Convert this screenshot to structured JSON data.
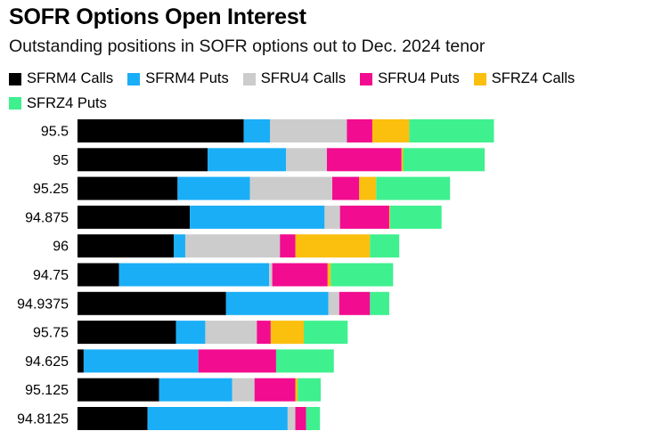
{
  "chart_data": {
    "type": "bar",
    "orientation": "horizontal",
    "stacked": true,
    "title": "SOFR Options Open Interest",
    "subtitle": "Outstanding positions in SOFR options out to Dec. 2024 tenor",
    "legend_position": "top",
    "categories": [
      "95.5",
      "95",
      "95.25",
      "94.875",
      "96",
      "94.75",
      "94.9375",
      "95.75",
      "94.625",
      "95.125",
      "94.8125"
    ],
    "series": [
      {
        "name": "SFRM4 Calls",
        "color": "#000000",
        "values": [
          216,
          169,
          130,
          146,
          125,
          54,
          193,
          128,
          8,
          106,
          91
        ]
      },
      {
        "name": "SFRM4 Puts",
        "color": "#1aaef7",
        "values": [
          34,
          102,
          94,
          175,
          15,
          195,
          133,
          38,
          149,
          95,
          182
        ]
      },
      {
        "name": "SFRU4 Calls",
        "color": "#cccccc",
        "values": [
          100,
          53,
          107,
          20,
          123,
          4,
          14,
          67,
          0,
          29,
          10
        ]
      },
      {
        "name": "SFRU4 Puts",
        "color": "#f20c8f",
        "values": [
          33,
          97,
          35,
          64,
          20,
          72,
          40,
          18,
          101,
          53,
          14
        ]
      },
      {
        "name": "SFRZ4 Calls",
        "color": "#fbbf0e",
        "values": [
          48,
          2,
          22,
          1,
          97,
          4,
          0,
          43,
          0,
          3,
          0
        ]
      },
      {
        "name": "SFRZ4 Puts",
        "color": "#3ff08f",
        "values": [
          110,
          106,
          96,
          67,
          38,
          81,
          25,
          57,
          75,
          30,
          18
        ]
      }
    ],
    "xlim": [
      0,
      640
    ],
    "grid": false,
    "axes_visible": false
  }
}
